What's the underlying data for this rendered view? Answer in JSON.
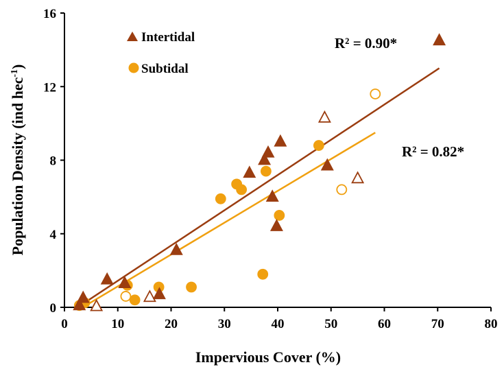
{
  "chart_data": {
    "type": "scatter",
    "xlabel": "Impervious Cover (%)",
    "ylabel_main": "Population Density (ind hec",
    "ylabel_sup": "-1",
    "ylabel_close": ")",
    "xlim": [
      0,
      80
    ],
    "ylim": [
      0,
      16
    ],
    "xticks": [
      "0",
      "10",
      "20",
      "30",
      "40",
      "50",
      "60",
      "70",
      "80"
    ],
    "yticks": [
      "0",
      "4",
      "8",
      "12",
      "16"
    ],
    "legend": {
      "placement": "top-left"
    },
    "colors": {
      "intertidal": "#9b3d10",
      "subtidal": "#f0a010"
    },
    "series": [
      {
        "name": "Intertidal",
        "marker": "triangle",
        "color": "#9b3d10",
        "points": [
          {
            "x": 2.8,
            "y": 0.1,
            "filled": true
          },
          {
            "x": 3.5,
            "y": 0.5,
            "filled": true
          },
          {
            "x": 6.0,
            "y": 0.05,
            "filled": false
          },
          {
            "x": 8.0,
            "y": 1.5,
            "filled": true
          },
          {
            "x": 11.3,
            "y": 1.3,
            "filled": true
          },
          {
            "x": 16.0,
            "y": 0.55,
            "filled": false
          },
          {
            "x": 17.8,
            "y": 0.7,
            "filled": true
          },
          {
            "x": 21.0,
            "y": 3.1,
            "filled": true
          },
          {
            "x": 34.7,
            "y": 7.3,
            "filled": true
          },
          {
            "x": 37.5,
            "y": 8.0,
            "filled": true
          },
          {
            "x": 38.2,
            "y": 8.4,
            "filled": true
          },
          {
            "x": 39.0,
            "y": 6.0,
            "filled": true
          },
          {
            "x": 39.8,
            "y": 4.4,
            "filled": true
          },
          {
            "x": 40.5,
            "y": 9.0,
            "filled": true
          },
          {
            "x": 48.8,
            "y": 10.3,
            "filled": false
          },
          {
            "x": 49.3,
            "y": 7.7,
            "filled": true
          },
          {
            "x": 55.0,
            "y": 7.0,
            "filled": false
          },
          {
            "x": 70.3,
            "y": 14.5,
            "filled": true
          }
        ],
        "trend": {
          "x": [
            3.0,
            70.3
          ],
          "y": [
            0.1,
            13.0
          ],
          "r2": "R² = 0.90*"
        }
      },
      {
        "name": "Subtidal",
        "marker": "circle",
        "color": "#f0a010",
        "points": [
          {
            "x": 2.8,
            "y": 0.1,
            "filled": true
          },
          {
            "x": 3.8,
            "y": 0.25,
            "filled": true
          },
          {
            "x": 11.5,
            "y": 0.6,
            "filled": false
          },
          {
            "x": 11.8,
            "y": 1.2,
            "filled": true
          },
          {
            "x": 13.2,
            "y": 0.4,
            "filled": true
          },
          {
            "x": 17.7,
            "y": 1.1,
            "filled": true
          },
          {
            "x": 23.8,
            "y": 1.1,
            "filled": true
          },
          {
            "x": 29.3,
            "y": 5.9,
            "filled": true
          },
          {
            "x": 32.3,
            "y": 6.7,
            "filled": true
          },
          {
            "x": 33.2,
            "y": 6.4,
            "filled": true
          },
          {
            "x": 37.2,
            "y": 1.8,
            "filled": true
          },
          {
            "x": 37.8,
            "y": 7.4,
            "filled": true
          },
          {
            "x": 40.3,
            "y": 5.0,
            "filled": true
          },
          {
            "x": 47.7,
            "y": 8.8,
            "filled": true
          },
          {
            "x": 52.0,
            "y": 6.4,
            "filled": false
          },
          {
            "x": 58.3,
            "y": 11.6,
            "filled": false
          }
        ],
        "trend": {
          "x": [
            4.0,
            58.3
          ],
          "y": [
            0.1,
            9.5
          ],
          "r2": "R² = 0.82*"
        }
      }
    ]
  }
}
